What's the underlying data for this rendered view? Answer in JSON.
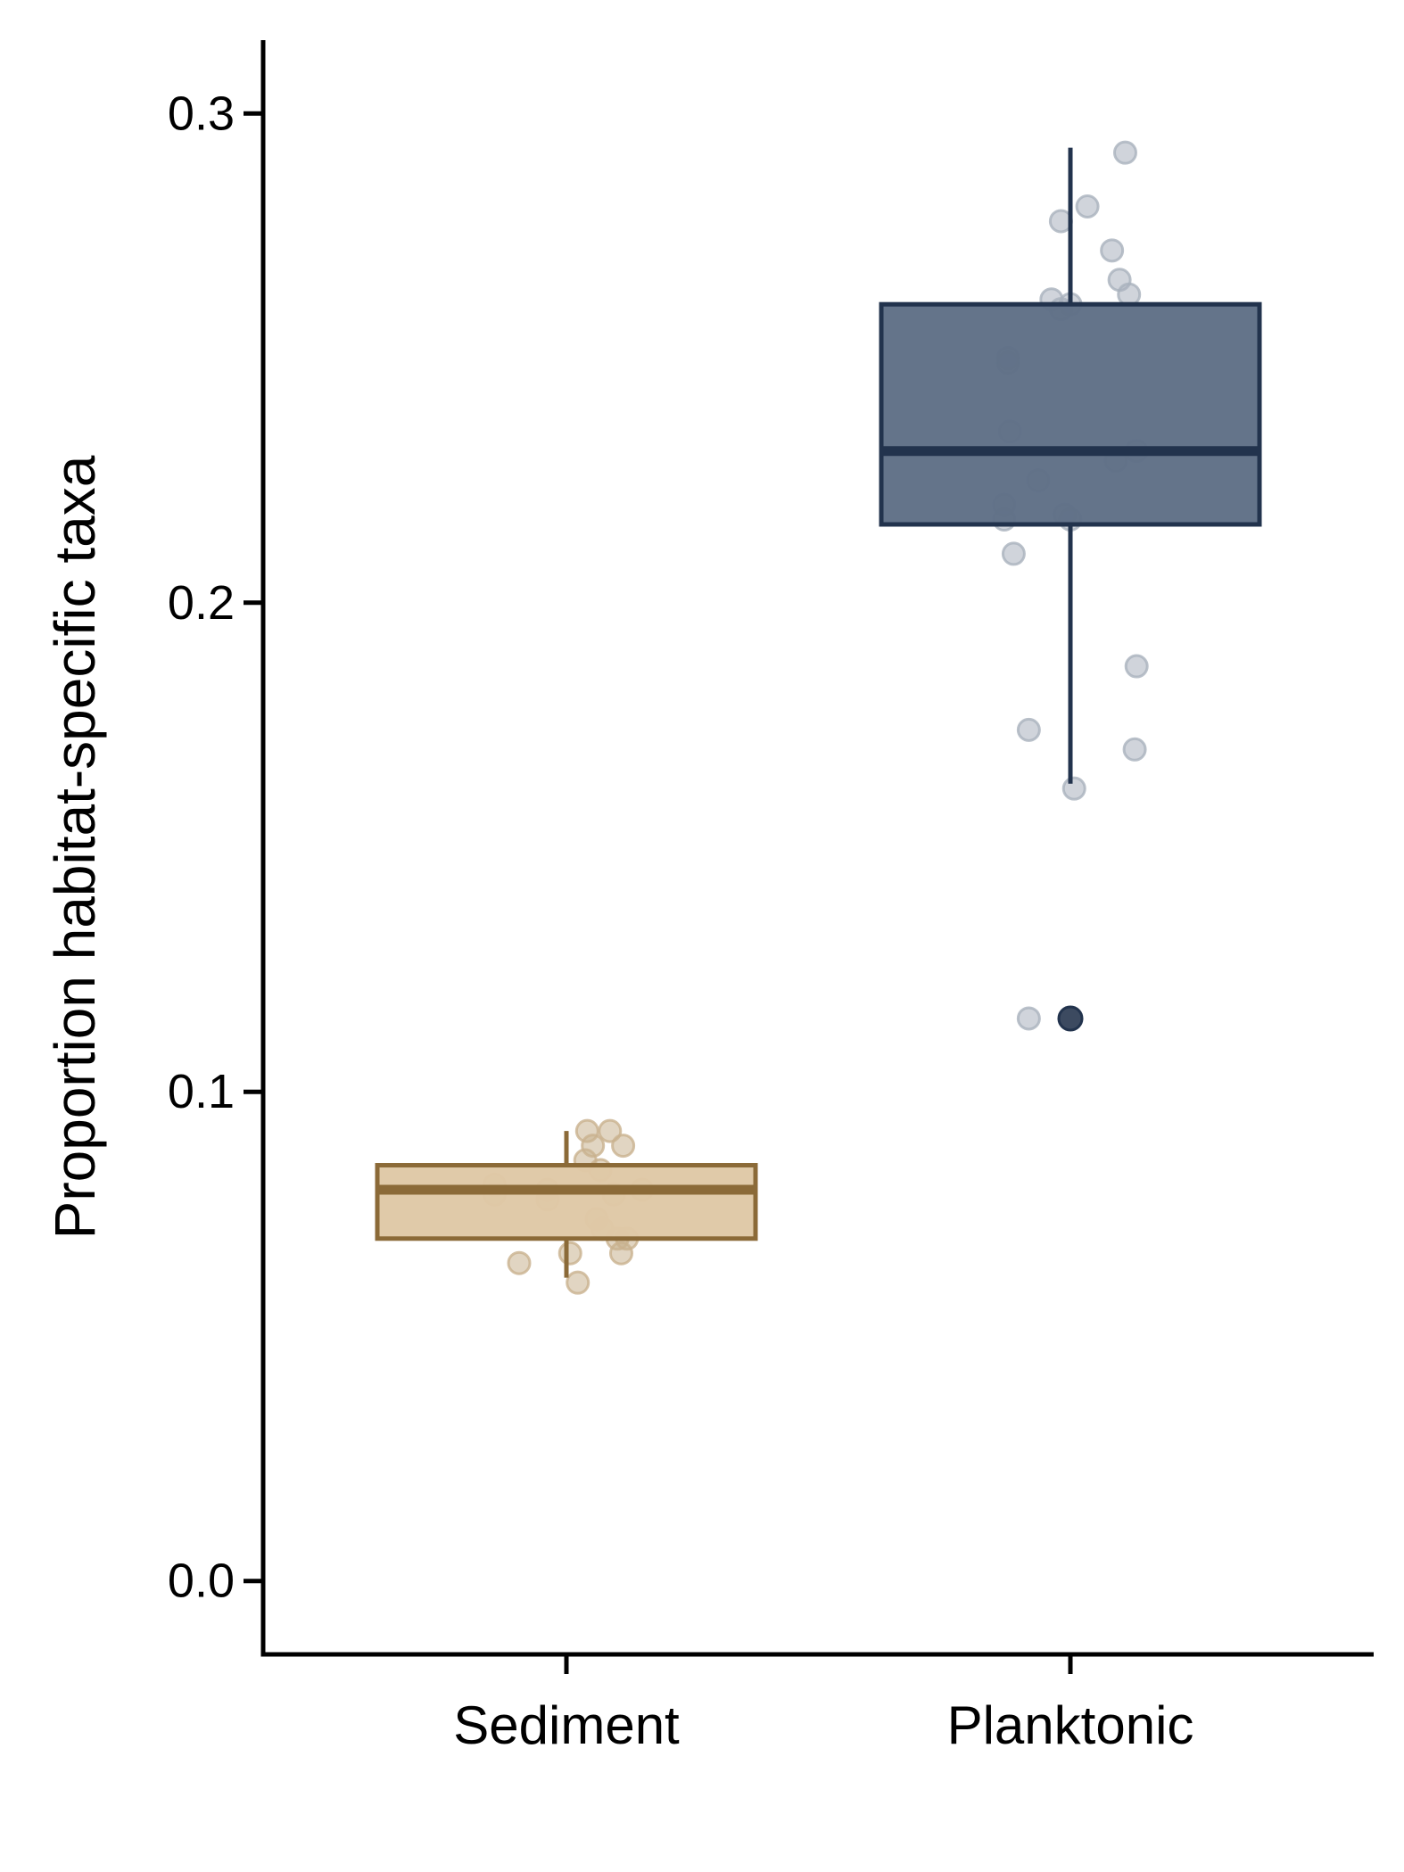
{
  "chart_data": {
    "type": "box",
    "xlabel": "",
    "ylabel": "Proportion habitat-specific taxa",
    "ylim": [
      -0.015,
      0.315
    ],
    "y_ticks": [
      0.0,
      0.1,
      0.2,
      0.3
    ],
    "y_tick_labels": [
      "0.0",
      "0.1",
      "0.2",
      "0.3"
    ],
    "categories": [
      "Sediment",
      "Planktonic"
    ],
    "grid": false,
    "legend": "none",
    "groups": [
      {
        "name": "Sediment",
        "fill": "#dfc8a6",
        "stroke": "#8b6a38",
        "point_color": "#c9b28f",
        "whisker_low": 0.062,
        "q1": 0.07,
        "median": 0.08,
        "q3": 0.085,
        "whisker_high": 0.092,
        "outliers": [],
        "points": [
          {
            "j": -0.38,
            "y": 0.081
          },
          {
            "j": -0.38,
            "y": 0.079
          },
          {
            "j": -0.25,
            "y": 0.065
          },
          {
            "j": -0.1,
            "y": 0.08
          },
          {
            "j": -0.1,
            "y": 0.078
          },
          {
            "j": 0.02,
            "y": 0.067
          },
          {
            "j": 0.06,
            "y": 0.061
          },
          {
            "j": 0.1,
            "y": 0.086
          },
          {
            "j": 0.11,
            "y": 0.092
          },
          {
            "j": 0.14,
            "y": 0.089
          },
          {
            "j": 0.16,
            "y": 0.074
          },
          {
            "j": 0.18,
            "y": 0.084
          },
          {
            "j": 0.19,
            "y": 0.072
          },
          {
            "j": 0.23,
            "y": 0.092
          },
          {
            "j": 0.25,
            "y": 0.079
          },
          {
            "j": 0.27,
            "y": 0.07
          },
          {
            "j": 0.29,
            "y": 0.067
          },
          {
            "j": 0.3,
            "y": 0.089
          },
          {
            "j": 0.32,
            "y": 0.07
          },
          {
            "j": 0.4,
            "y": 0.08
          }
        ]
      },
      {
        "name": "Planktonic",
        "fill": "#5f6f86",
        "stroke": "#22334d",
        "point_color": "#a9b1bd",
        "whisker_low": 0.163,
        "q1": 0.216,
        "median": 0.231,
        "q3": 0.261,
        "whisker_high": 0.293,
        "outliers": [
          0.115
        ],
        "points": [
          {
            "j": -0.35,
            "y": 0.22
          },
          {
            "j": -0.35,
            "y": 0.217
          },
          {
            "j": -0.33,
            "y": 0.25
          },
          {
            "j": -0.33,
            "y": 0.249
          },
          {
            "j": -0.32,
            "y": 0.235
          },
          {
            "j": -0.3,
            "y": 0.21
          },
          {
            "j": -0.22,
            "y": 0.174
          },
          {
            "j": -0.22,
            "y": 0.115
          },
          {
            "j": -0.17,
            "y": 0.225
          },
          {
            "j": -0.1,
            "y": 0.262
          },
          {
            "j": -0.05,
            "y": 0.26
          },
          {
            "j": -0.05,
            "y": 0.278
          },
          {
            "j": -0.03,
            "y": 0.218
          },
          {
            "j": 0.0,
            "y": 0.261
          },
          {
            "j": 0.0,
            "y": 0.217
          },
          {
            "j": 0.02,
            "y": 0.162
          },
          {
            "j": 0.09,
            "y": 0.281
          },
          {
            "j": 0.22,
            "y": 0.272
          },
          {
            "j": 0.24,
            "y": 0.229
          },
          {
            "j": 0.26,
            "y": 0.266
          },
          {
            "j": 0.29,
            "y": 0.292
          },
          {
            "j": 0.31,
            "y": 0.263
          },
          {
            "j": 0.34,
            "y": 0.17
          },
          {
            "j": 0.35,
            "y": 0.187
          },
          {
            "j": 0.35,
            "y": 0.231
          }
        ]
      }
    ]
  }
}
